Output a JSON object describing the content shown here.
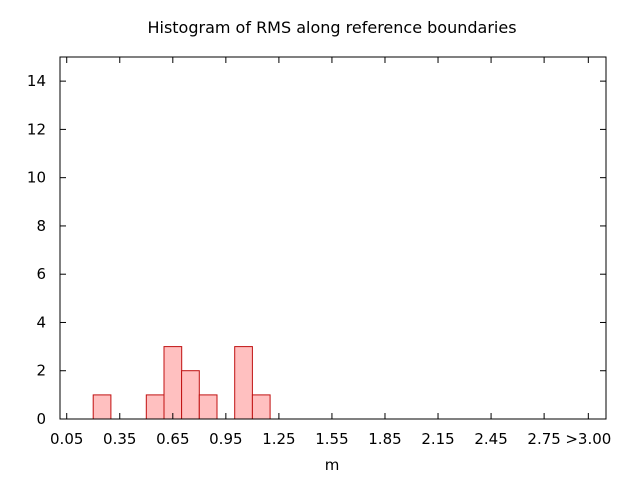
{
  "chart_data": {
    "type": "bar",
    "title": "Histogram of RMS along reference boundaries",
    "xlabel": "m",
    "ylabel": "",
    "bin_width": 0.1,
    "xlim": [
      0.0,
      3.1
    ],
    "ylim": [
      0,
      15
    ],
    "x_ticks": [
      0.05,
      0.35,
      0.65,
      0.95,
      1.25,
      1.55,
      1.85,
      2.15,
      2.45,
      2.75,
      3.0
    ],
    "x_tick_labels": [
      "0.05",
      "0.35",
      "0.65",
      "0.95",
      "1.25",
      "1.55",
      "1.85",
      "2.15",
      "2.45",
      "2.75",
      ">3.00"
    ],
    "y_ticks": [
      0,
      2,
      4,
      6,
      8,
      10,
      12,
      14
    ],
    "y_tick_labels": [
      "0",
      "2",
      "4",
      "6",
      "8",
      "10",
      "12",
      "14"
    ],
    "bins": [
      {
        "center": 0.25,
        "value": 1
      },
      {
        "center": 0.55,
        "value": 1
      },
      {
        "center": 0.65,
        "value": 3
      },
      {
        "center": 0.75,
        "value": 2
      },
      {
        "center": 0.85,
        "value": 1
      },
      {
        "center": 1.05,
        "value": 3
      },
      {
        "center": 1.15,
        "value": 1
      }
    ],
    "bar_fill": "#ffc0c0",
    "bar_stroke": "#c01010",
    "grid": false
  }
}
